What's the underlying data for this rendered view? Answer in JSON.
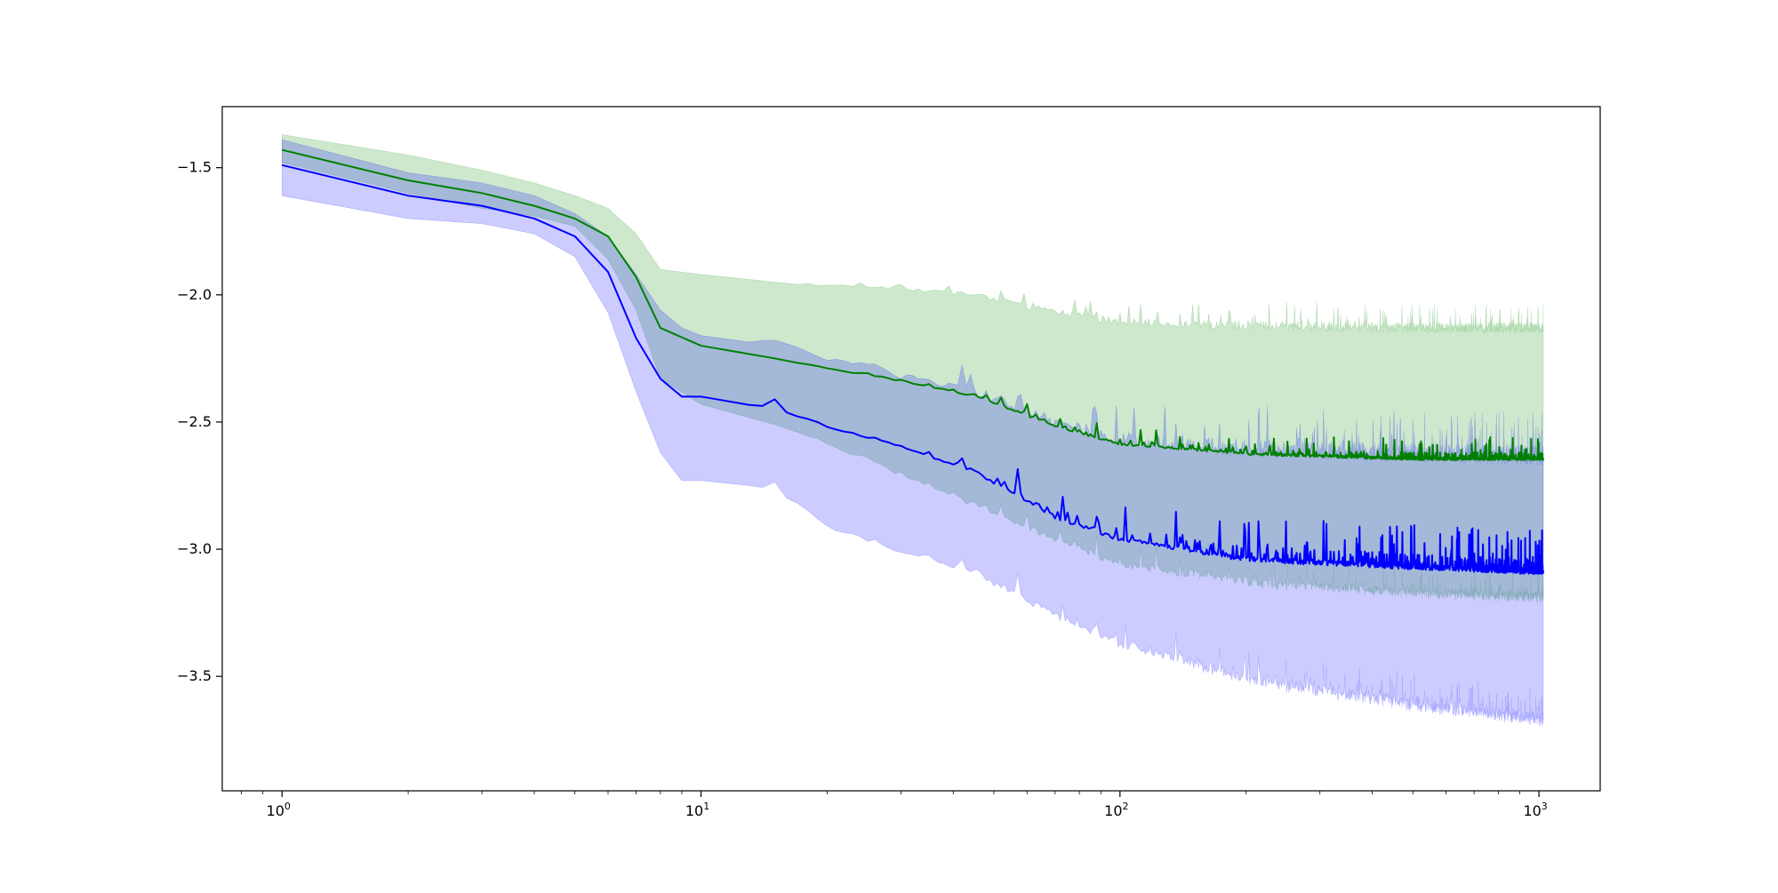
{
  "chart_data": {
    "type": "line",
    "title": "",
    "xlabel": "",
    "ylabel": "",
    "xscale": "log",
    "xlim": [
      0.72,
      1400
    ],
    "ylim": [
      -3.95,
      -1.26
    ],
    "grid": false,
    "legend": "none",
    "x_ticks": [
      {
        "value": 1,
        "base": "10",
        "exp": "0"
      },
      {
        "value": 10,
        "base": "10",
        "exp": "1"
      },
      {
        "value": 100,
        "base": "10",
        "exp": "2"
      },
      {
        "value": 1000,
        "base": "10",
        "exp": "3"
      }
    ],
    "y_ticks": [
      {
        "value": -1.5,
        "label": "−1.5"
      },
      {
        "value": -2.0,
        "label": "−2.0"
      },
      {
        "value": -2.5,
        "label": "−2.5"
      },
      {
        "value": -3.0,
        "label": "−3.0"
      },
      {
        "value": -3.5,
        "label": "−3.5"
      }
    ],
    "series": [
      {
        "color": "#008000",
        "band_color": "#2ca02c",
        "band_opacity": 0.24,
        "anchors": [
          [
            1,
            -1.43,
            -1.37,
            -1.48
          ],
          [
            2,
            -1.55,
            -1.45,
            -1.6
          ],
          [
            3,
            -1.6,
            -1.51,
            -1.66
          ],
          [
            4,
            -1.65,
            -1.56,
            -1.69
          ],
          [
            5,
            -1.7,
            -1.61,
            -1.73
          ],
          [
            6,
            -1.77,
            -1.66,
            -1.86
          ],
          [
            7,
            -1.93,
            -1.76,
            -2.06
          ],
          [
            8,
            -2.13,
            -1.9,
            -2.33
          ],
          [
            10,
            -2.2,
            -1.92,
            -2.43
          ],
          [
            15,
            -2.25,
            -1.95,
            -2.51
          ],
          [
            20,
            -2.29,
            -1.97,
            -2.58
          ],
          [
            30,
            -2.34,
            -1.98,
            -2.7
          ],
          [
            45,
            -2.4,
            -2.01,
            -2.82
          ],
          [
            70,
            -2.52,
            -2.08,
            -2.96
          ],
          [
            100,
            -2.59,
            -2.12,
            -3.05
          ],
          [
            200,
            -2.63,
            -2.14,
            -3.12
          ],
          [
            500,
            -2.65,
            -2.15,
            -3.16
          ],
          [
            1024,
            -2.65,
            -2.15,
            -3.18
          ]
        ],
        "spike_amp": [
          0.09,
          0.12,
          0.12
        ],
        "spike_start": 18
      },
      {
        "color": "#0000ff",
        "band_color": "#0000ff",
        "band_opacity": 0.2,
        "anchors": [
          [
            1,
            -1.49,
            -1.39,
            -1.61
          ],
          [
            2,
            -1.61,
            -1.52,
            -1.7
          ],
          [
            3,
            -1.65,
            -1.56,
            -1.72
          ],
          [
            4,
            -1.7,
            -1.61,
            -1.76
          ],
          [
            5,
            -1.77,
            -1.68,
            -1.85
          ],
          [
            6,
            -1.91,
            -1.77,
            -2.07
          ],
          [
            7,
            -2.17,
            -1.92,
            -2.38
          ],
          [
            8,
            -2.33,
            -2.06,
            -2.62
          ],
          [
            9,
            -2.4,
            -2.13,
            -2.73
          ],
          [
            10,
            -2.4,
            -2.16,
            -2.73
          ],
          [
            15,
            -2.45,
            -2.2,
            -2.76
          ],
          [
            20,
            -2.52,
            -2.26,
            -2.9
          ],
          [
            30,
            -2.6,
            -2.33,
            -3.0
          ],
          [
            45,
            -2.7,
            -2.4,
            -3.08
          ],
          [
            70,
            -2.88,
            -2.53,
            -3.25
          ],
          [
            100,
            -2.97,
            -2.6,
            -3.36
          ],
          [
            200,
            -3.05,
            -2.64,
            -3.5
          ],
          [
            500,
            -3.08,
            -2.66,
            -3.6
          ],
          [
            1024,
            -3.1,
            -2.67,
            -3.66
          ]
        ],
        "spike_amp": [
          0.18,
          0.22,
          0.14
        ],
        "spike_start": 14
      }
    ]
  }
}
